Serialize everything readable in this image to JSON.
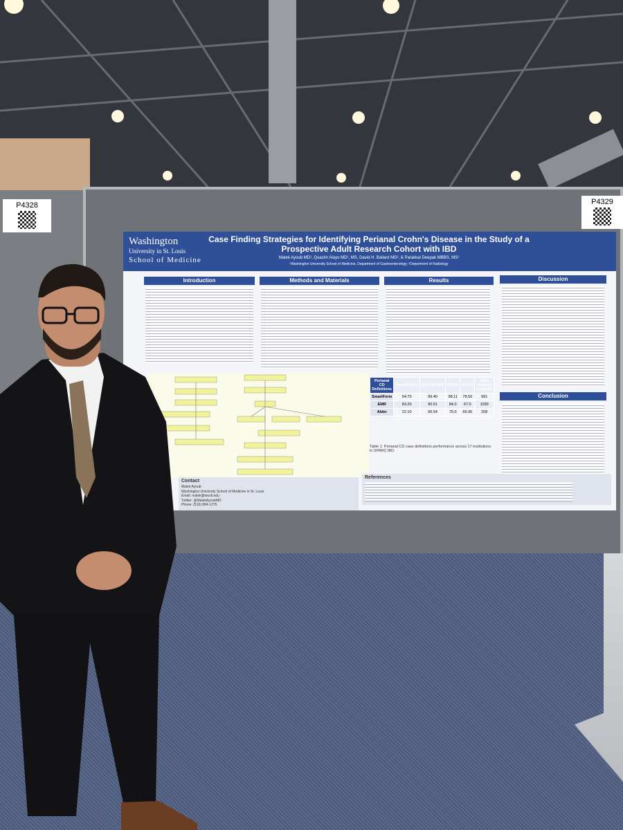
{
  "boards": {
    "left_label": "P4328",
    "right_label": "P4329"
  },
  "poster": {
    "logo": {
      "line1": "Washington",
      "line2": "University in St. Louis",
      "line3": "School of Medicine"
    },
    "title": "Case Finding Strategies for Identifying Perianal Crohn's Disease in the Study of a Prospective Adult Research Cohort with IBD",
    "authors": "Malek Ayoub MD¹, Quazim Alayo MD¹, MS, David H. Ballard MD², & Parakkal Deepak MBBS, MS¹",
    "affiliation": "¹Washington University School of Medicine, Department of Gastroenterology; ²Department of Radiology",
    "sections": {
      "introduction": "Introduction",
      "methods": "Methods and Materials",
      "results": "Results",
      "discussion": "Discussion",
      "conclusion": "Conclusion",
      "contact": "Contact",
      "references": "References"
    },
    "table": {
      "header": [
        "Perianal CD Definitions",
        "Sensitivity%",
        "Specificity%",
        "PPV%",
        "NPV%",
        "pCD patients (n=1429)"
      ],
      "rows": [
        [
          "SmartForm",
          "54.70",
          "99.40",
          "98.11",
          "78.50",
          "991"
        ],
        [
          "EMR",
          "83.20",
          "90.51",
          "84.0",
          "67.0",
          "1030"
        ],
        [
          "Alder",
          "22.10",
          "95.54",
          "75.0",
          "66.96",
          "208"
        ]
      ],
      "caption": "Table 1: Perianal CD case definitions performance across 17 institutions in SPARC IBD."
    },
    "contact": [
      "Malek Ayoub",
      "Washington University School of Medicine in St. Louis",
      "Email: malek@wustl.edu",
      "Twitter: @MalekAyoubMD",
      "Phone: (516) 884-1275"
    ]
  }
}
